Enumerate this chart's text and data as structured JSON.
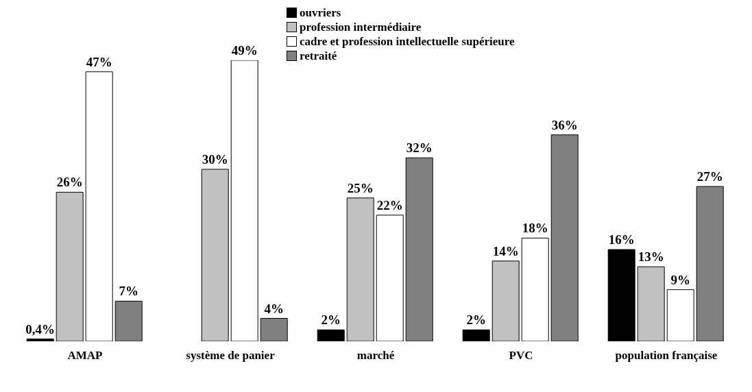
{
  "chart_data": {
    "type": "bar",
    "categories": [
      "AMAP",
      "système de panier",
      "marché",
      "PVC",
      "population française"
    ],
    "series": [
      {
        "name": "ouvriers",
        "color": "#000000",
        "values": [
          0.4,
          null,
          2,
          2,
          16
        ],
        "value_labels": [
          "0,4%",
          null,
          "2%",
          "2%",
          "16%"
        ]
      },
      {
        "name": "profession intermédiaire",
        "color": "#c0c0c0",
        "values": [
          26,
          30,
          25,
          14,
          13
        ],
        "value_labels": [
          "26%",
          "30%",
          "25%",
          "14%",
          "13%"
        ]
      },
      {
        "name": "cadre et profession intellectuelle supérieure",
        "color": "#ffffff",
        "values": [
          47,
          49,
          22,
          18,
          9
        ],
        "value_labels": [
          "47%",
          "49%",
          "22%",
          "18%",
          "9%"
        ]
      },
      {
        "name": "retraité",
        "color": "#808080",
        "values": [
          7,
          4,
          32,
          36,
          27
        ],
        "value_labels": [
          "7%",
          "4%",
          "32%",
          "36%",
          "27%"
        ]
      }
    ],
    "legend": "top right",
    "grid": false
  }
}
